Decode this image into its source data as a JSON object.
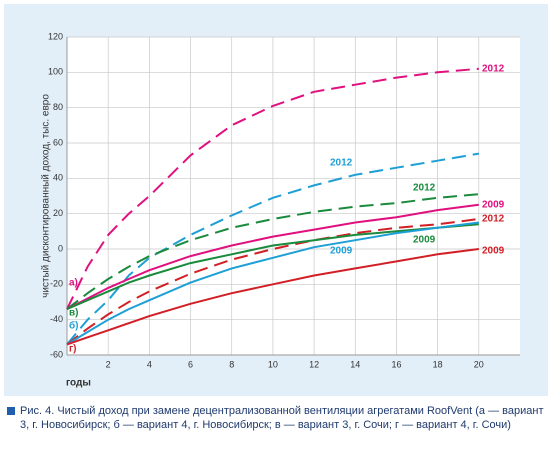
{
  "chart_data": {
    "type": "line",
    "y_label": "чистый дисконтированный доход, тыс. евро",
    "x_label": "годы",
    "caption": "Рис. 4. Чистый доход при замене децентрализованной вентиляции агрегатами RoofVent (а — вариант 3, г. Новосибирск; б — вариант 4, г. Новосибирск; в — вариант 3, г. Сочи; г — вариант 4, г. Сочи)",
    "x": [
      0,
      1,
      2,
      3,
      4,
      6,
      8,
      10,
      12,
      14,
      16,
      18,
      20
    ],
    "series": [
      {
        "name": "2012",
        "color": "#e0107f",
        "dashed": true,
        "values": [
          -34,
          -10,
          8,
          20,
          30,
          53,
          70,
          81,
          89,
          93,
          97,
          100,
          102
        ]
      },
      {
        "name": "2012",
        "color": "#1e9fd6",
        "dashed": true,
        "values": [
          -54,
          -40,
          -29,
          -15,
          -5,
          8,
          19,
          29,
          36,
          42,
          46,
          50,
          54
        ]
      },
      {
        "name": "2012",
        "color": "#1a8a3c",
        "dashed": true,
        "values": [
          -34,
          -25,
          -17,
          -10,
          -4,
          5,
          12,
          17,
          21,
          24,
          26,
          29,
          31
        ]
      },
      {
        "name": "2009",
        "color": "#e0107f",
        "dashed": false,
        "values": [
          -34,
          -28,
          -22,
          -17,
          -12,
          -4,
          2,
          7,
          11,
          15,
          18,
          22,
          25
        ]
      },
      {
        "name": "2012",
        "color": "#d21f26",
        "dashed": true,
        "values": [
          -54,
          -45,
          -37,
          -30,
          -24,
          -14,
          -6,
          0,
          5,
          9,
          12,
          14,
          17
        ]
      },
      {
        "name": "2009",
        "color": "#1a8a3c",
        "dashed": false,
        "values": [
          -34,
          -29,
          -24,
          -19,
          -15,
          -8,
          -3,
          2,
          5,
          8,
          10,
          12,
          14
        ]
      },
      {
        "name": "2009",
        "color": "#1e9fd6",
        "dashed": false,
        "values": [
          -54,
          -47,
          -40,
          -34,
          -29,
          -19,
          -11,
          -5,
          1,
          5,
          9,
          12,
          15
        ]
      },
      {
        "name": "2009",
        "color": "#d21f26",
        "dashed": false,
        "values": [
          -54,
          -50,
          -46,
          -42,
          -38,
          -31,
          -25,
          -20,
          -15,
          -11,
          -7,
          -3,
          0
        ]
      }
    ],
    "variant_labels": [
      {
        "text": "а)",
        "color": "#e0107f"
      },
      {
        "text": "в)",
        "color": "#1a8a3c"
      },
      {
        "text": "б)",
        "color": "#1e9fd6"
      },
      {
        "text": "г)",
        "color": "#d21f26"
      }
    ],
    "xlim": [
      0,
      22
    ],
    "ylim": [
      -60,
      120
    ],
    "xticks": [
      2,
      4,
      6,
      8,
      10,
      12,
      14,
      16,
      18,
      20
    ],
    "yticks": [
      -60,
      -40,
      -20,
      0,
      20,
      40,
      60,
      80,
      100,
      120
    ],
    "grid": true
  }
}
